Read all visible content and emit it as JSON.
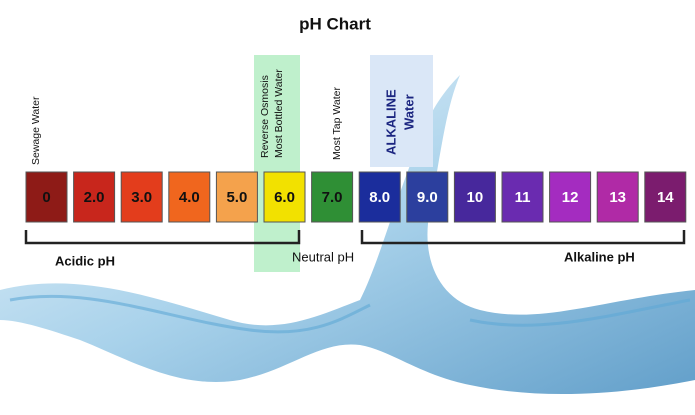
{
  "title": "pH Chart",
  "annotations": {
    "sewage": "Sewage Water",
    "ro_1": "Reverse Osmosis",
    "ro_2": "Most Bottled Water",
    "tap": "Most Tap Water",
    "alk_1": "ALKALINE",
    "alk_2": "Water"
  },
  "groups": {
    "acidic": "Acidic pH",
    "neutral": "Neutral pH",
    "alkaline": "Alkaline pH"
  },
  "boxes": [
    {
      "label": "0",
      "color": "#8e1b17",
      "text_color": "#111111"
    },
    {
      "label": "2.0",
      "color": "#c8261c",
      "text_color": "#111111"
    },
    {
      "label": "3.0",
      "color": "#e33d1c",
      "text_color": "#111111"
    },
    {
      "label": "4.0",
      "color": "#f0661e",
      "text_color": "#111111"
    },
    {
      "label": "5.0",
      "color": "#f4a24c",
      "text_color": "#111111"
    },
    {
      "label": "6.0",
      "color": "#f2e100",
      "text_color": "#111111"
    },
    {
      "label": "7.0",
      "color": "#2f8f35",
      "text_color": "#111111"
    },
    {
      "label": "8.0",
      "color": "#1b2d9c",
      "text_color": "#ffffff"
    },
    {
      "label": "9.0",
      "color": "#2c3f9e",
      "text_color": "#ffffff"
    },
    {
      "label": "10",
      "color": "#47289c",
      "text_color": "#ffffff"
    },
    {
      "label": "11",
      "color": "#6a2bb0",
      "text_color": "#ffffff"
    },
    {
      "label": "12",
      "color": "#a42cc0",
      "text_color": "#ffffff"
    },
    {
      "label": "13",
      "color": "#b02aa6",
      "text_color": "#ffffff"
    },
    {
      "label": "14",
      "color": "#7b1c6e",
      "text_color": "#ffffff"
    }
  ]
}
